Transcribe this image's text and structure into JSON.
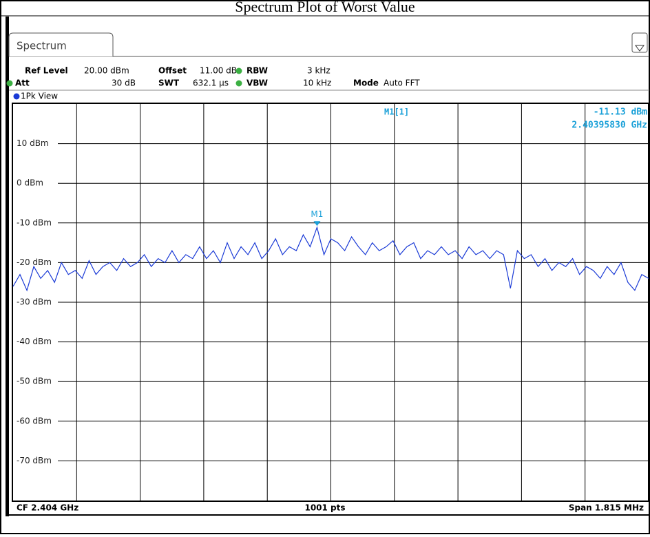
{
  "header": {
    "title": "Spectrum Plot of Worst Value"
  },
  "tab": "Spectrum",
  "settings": {
    "ref_level_label": "Ref Level",
    "ref_level": "20.00 dBm",
    "offset_label": "Offset",
    "offset": "11.00 dB",
    "rbw_label": "RBW",
    "rbw": "3 kHz",
    "att_label": "Att",
    "att": "30 dB",
    "swt_label": "SWT",
    "swt": "632.1 µs",
    "vbw_label": "VBW",
    "vbw": "10 kHz",
    "mode_label": "Mode",
    "mode": "Auto FFT"
  },
  "view": "1Pk View",
  "chart_data": {
    "type": "line",
    "color": "#1a3ad6",
    "values": [
      -26,
      -23,
      -27,
      -21,
      -24,
      -22,
      -25,
      -20,
      -23,
      -22,
      -24,
      -19.5,
      -23,
      -21,
      -20,
      -22,
      -19,
      -21,
      -20,
      -18,
      -21,
      -19,
      -20,
      -17,
      -20,
      -18,
      -19,
      -16,
      -19,
      -17,
      -20,
      -15,
      -19,
      -16,
      -18,
      -15,
      -19,
      -17,
      -14,
      -18,
      -16,
      -17,
      -13,
      -16,
      -11.13,
      -18,
      -14,
      -15,
      -17,
      -13.5,
      -16,
      -18,
      -15,
      -17,
      -16,
      -14.5,
      -18,
      -16,
      -15,
      -19,
      -17,
      -18,
      -16,
      -18,
      -17,
      -19,
      -16,
      -18,
      -17,
      -19,
      -17,
      -18,
      -26.5,
      -17,
      -19,
      -18,
      -21,
      -19,
      -22,
      -20,
      -21,
      -19,
      -23,
      -21,
      -22,
      -24,
      -21,
      -23,
      -20,
      -25,
      -27,
      -23,
      -24
    ],
    "ylim": [
      -80,
      20
    ],
    "yticks": [
      {
        "value": 10,
        "label": "10 dBm"
      },
      {
        "value": 0,
        "label": "0 dBm"
      },
      {
        "value": -10,
        "label": "-10 dBm"
      },
      {
        "value": -20,
        "label": "-20 dBm"
      },
      {
        "value": -30,
        "label": "-30 dBm"
      },
      {
        "value": -40,
        "label": "-40 dBm"
      },
      {
        "value": -50,
        "label": "-50 dBm"
      },
      {
        "value": -60,
        "label": "-60 dBm"
      },
      {
        "value": -70,
        "label": "-70 dBm"
      }
    ],
    "grid": true,
    "marker": {
      "label": "M1",
      "readout": "M1[1]",
      "value": -11.13,
      "value_label": "-11.13 dBm",
      "frequency": "2.40395830 GHz"
    }
  },
  "footer": {
    "center_frequency": "CF 2.404 GHz",
    "points": "1001 pts",
    "span": "Span 1.815 MHz"
  }
}
